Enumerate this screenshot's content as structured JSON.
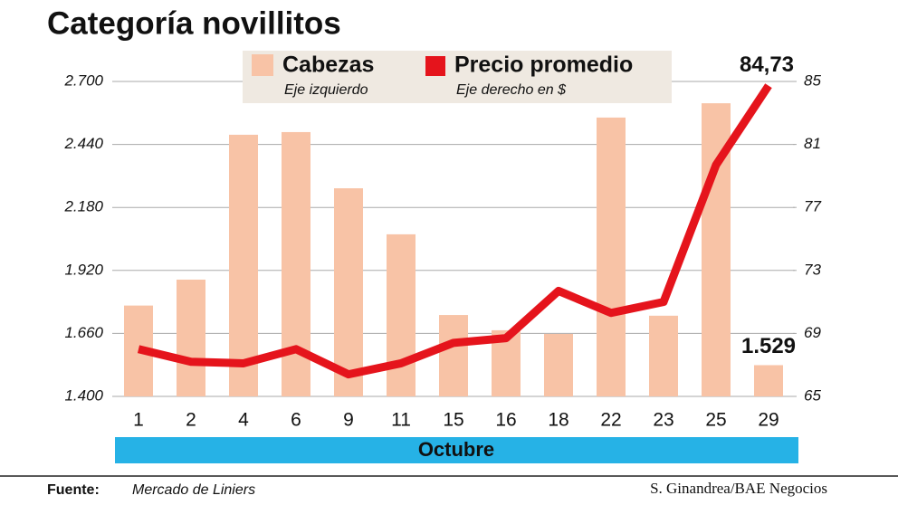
{
  "chart_data": {
    "type": "bar-line",
    "title": "Categoría novillitos",
    "categories": [
      "1",
      "2",
      "4",
      "6",
      "9",
      "11",
      "15",
      "16",
      "18",
      "22",
      "23",
      "25",
      "29"
    ],
    "x_label": "Octubre",
    "series": [
      {
        "name": "Cabezas",
        "note": "Eje izquierdo",
        "type": "bar",
        "color": "#f8c3a6",
        "values": [
          1775,
          1882,
          2480,
          2491,
          2259,
          2069,
          1736,
          1673,
          1658,
          2551,
          1733,
          2610,
          1529
        ],
        "value_labels": [
          null,
          null,
          null,
          null,
          null,
          null,
          null,
          null,
          null,
          null,
          null,
          null,
          "1.529"
        ]
      },
      {
        "name": "Precio promedio",
        "note": "Eje derecho en $",
        "type": "line",
        "axis": "y2",
        "color": "#e5141c",
        "values": [
          68.0,
          67.2,
          67.1,
          68.0,
          66.4,
          67.1,
          68.4,
          68.7,
          71.7,
          70.3,
          71.0,
          79.7,
          84.73
        ],
        "value_labels": [
          null,
          null,
          null,
          null,
          null,
          null,
          null,
          null,
          null,
          null,
          null,
          null,
          "84,73"
        ]
      }
    ],
    "ylim": [
      1400,
      2700
    ],
    "yticks": [
      {
        "value": 1400,
        "label": "1.400"
      },
      {
        "value": 1660,
        "label": "1.660"
      },
      {
        "value": 1920,
        "label": "1.920"
      },
      {
        "value": 2180,
        "label": "2.180"
      },
      {
        "value": 2440,
        "label": "2.440"
      },
      {
        "value": 2700,
        "label": "2.700"
      }
    ],
    "y2lim": [
      65,
      85
    ],
    "y2ticks": [
      65,
      69,
      73,
      77,
      81,
      85
    ],
    "grid": true,
    "source_label": "Fuente:",
    "source": "Mercado de Liniers",
    "credit": "S. Ginandrea/BAE Negocios"
  }
}
